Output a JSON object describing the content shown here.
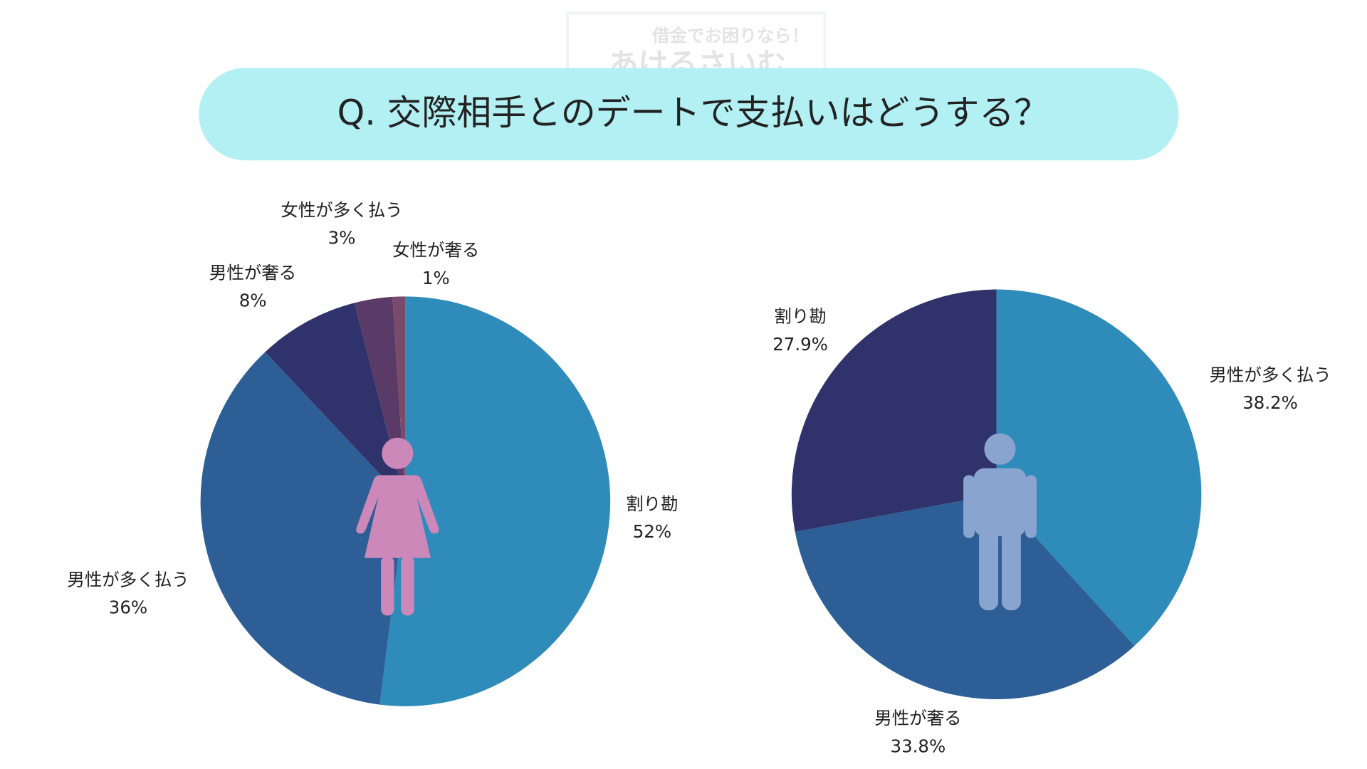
{
  "watermark": {
    "line1": "借金でお困りなら！",
    "line2": "あけるさいむ"
  },
  "title": "Q. 交際相手とのデートで支払いはどうする？",
  "chart_data": [
    {
      "type": "pie",
      "categories": [
        "割り勘",
        "男性が多く払う",
        "男性が奢る",
        "女性が多く払う",
        "女性が奢る"
      ],
      "values": [
        52,
        36,
        8,
        3,
        1
      ],
      "value_labels": [
        "52%",
        "36%",
        "8%",
        "3%",
        "1%"
      ],
      "colors": [
        "#2e8bba",
        "#2d5f96",
        "#30336b",
        "#5a3a66",
        "#7a4a6a"
      ]
    },
    {
      "type": "pie",
      "categories": [
        "男性が多く払う",
        "男性が奢る",
        "割り勘"
      ],
      "values": [
        38.2,
        33.8,
        27.9
      ],
      "value_labels": [
        "38.2%",
        "33.8%",
        "27.9%"
      ],
      "colors": [
        "#2e8bba",
        "#2d5f96",
        "#30336b"
      ]
    }
  ]
}
